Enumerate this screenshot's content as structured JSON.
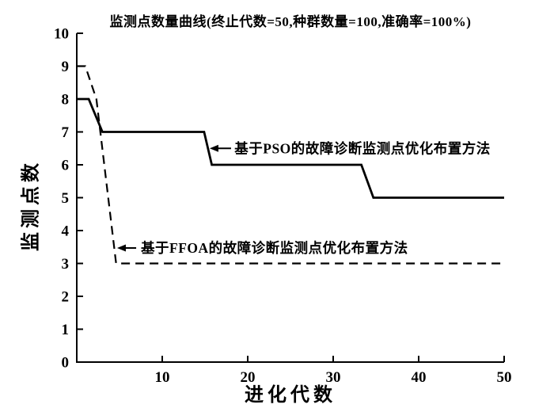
{
  "colors": {
    "ink": "#000000",
    "background": "#ffffff"
  },
  "chart_data": {
    "type": "line",
    "title": "监测点数量曲线(终止代数=50,种群数量=100,准确率=100%)",
    "xlabel": "进化代数",
    "ylabel": "监测点数",
    "xlim": [
      0,
      50
    ],
    "ylim": [
      0,
      10
    ],
    "x_ticks": [
      10,
      20,
      30,
      40,
      50
    ],
    "y_ticks": [
      0,
      1,
      2,
      3,
      4,
      5,
      6,
      7,
      8,
      9,
      10
    ],
    "grid": false,
    "legend_position": "in-plot arrow annotations",
    "series": [
      {
        "name": "基于PSO的故障诊断监测点优化布置方法",
        "line_style": "solid",
        "color": "#000000",
        "points": [
          [
            0,
            8
          ],
          [
            1.4,
            8
          ],
          [
            3,
            7
          ],
          [
            14.9,
            7
          ],
          [
            15.8,
            6
          ],
          [
            33.3,
            6
          ],
          [
            34.7,
            5
          ],
          [
            50,
            5
          ]
        ]
      },
      {
        "name": "基于FFOA的故障诊断监测点优化布置方法",
        "line_style": "dashed",
        "color": "#000000",
        "points": [
          [
            0,
            9
          ],
          [
            1,
            9
          ],
          [
            2.3,
            8
          ],
          [
            4.6,
            3
          ],
          [
            50,
            3
          ]
        ]
      }
    ],
    "annotations": [
      {
        "text": "基于PSO的故障诊断监测点优化布置方法",
        "arrow_tip": [
          15.55,
          6.5
        ],
        "arrow_tail": [
          18.05,
          6.5
        ],
        "text_anchor": [
          18.45,
          6.5
        ]
      },
      {
        "text": "基于FFOA的故障诊断监测点优化布置方法",
        "arrow_tip": [
          4.72,
          3.47
        ],
        "arrow_tail": [
          6.95,
          3.47
        ],
        "text_anchor": [
          7.5,
          3.47
        ]
      }
    ]
  }
}
